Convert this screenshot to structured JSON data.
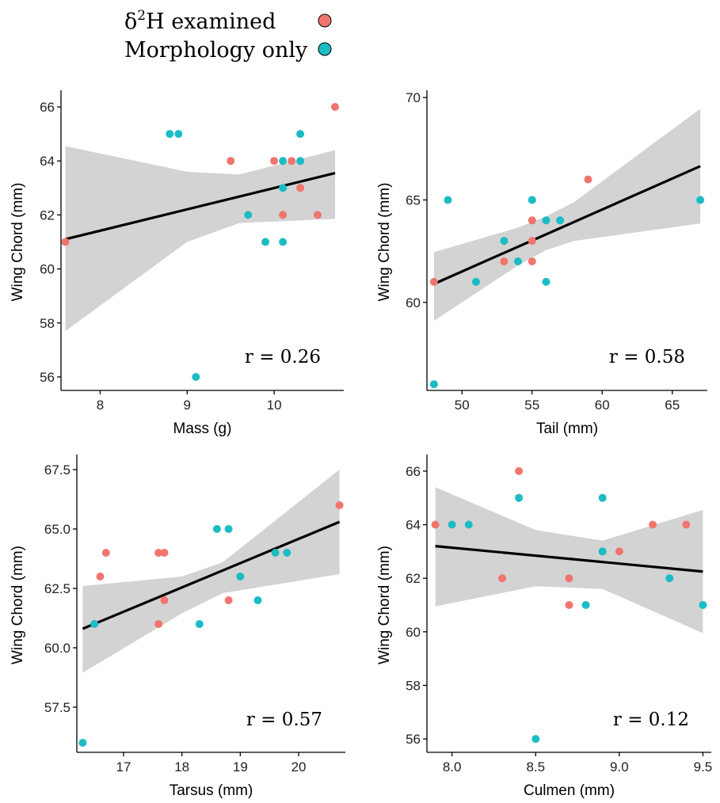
{
  "legend": {
    "items": [
      {
        "label_base": "δ",
        "label_sup": "2",
        "label_rest": "H examined",
        "color": "#F0756E"
      },
      {
        "label_base": "Morphology only",
        "label_sup": "",
        "label_rest": "",
        "color": "#1BBCC4"
      }
    ],
    "marker_stroke": "#000000"
  },
  "colors": {
    "delta2h": "#F0756E",
    "morphology": "#1BBCC4",
    "fit_line": "#000000",
    "ci_band": "#d3d3d3"
  },
  "chart_data": [
    {
      "type": "scatter",
      "xlabel": "Mass (g)",
      "ylabel": "Wing Chord (mm)",
      "r_label": "r = 0.26",
      "xlim": [
        7.55,
        10.8
      ],
      "ylim": [
        55.5,
        66.5
      ],
      "xticks": [
        8,
        9,
        10
      ],
      "xtick_labels": [
        "8",
        "9",
        "10"
      ],
      "yticks": [
        56,
        58,
        60,
        62,
        64,
        66
      ],
      "ytick_labels": [
        "56",
        "58",
        "60",
        "62",
        "64",
        "66"
      ],
      "fit": {
        "x": [
          7.6,
          10.7
        ],
        "y": [
          61.1,
          63.55
        ]
      },
      "ci_band": {
        "x": [
          7.6,
          9.0,
          9.6,
          10.7
        ],
        "upper": [
          64.55,
          63.6,
          63.5,
          64.4
        ],
        "lower": [
          57.7,
          61.0,
          61.7,
          61.85
        ]
      },
      "series": [
        {
          "name": "δ2H examined",
          "points": [
            [
              7.6,
              61
            ],
            [
              9.5,
              64
            ],
            [
              10.0,
              64
            ],
            [
              10.2,
              64
            ],
            [
              10.1,
              62
            ],
            [
              10.3,
              63
            ],
            [
              10.5,
              62
            ],
            [
              10.7,
              66
            ]
          ]
        },
        {
          "name": "Morphology only",
          "points": [
            [
              8.8,
              65
            ],
            [
              8.9,
              65
            ],
            [
              9.1,
              56
            ],
            [
              9.7,
              62
            ],
            [
              9.9,
              61
            ],
            [
              10.1,
              64
            ],
            [
              10.1,
              63
            ],
            [
              10.1,
              61
            ],
            [
              10.3,
              65
            ],
            [
              10.3,
              64
            ]
          ]
        }
      ]
    },
    {
      "type": "scatter",
      "xlabel": "Tail (mm)",
      "ylabel": "Wing Chord (mm)",
      "r_label": "r = 0.58",
      "xlim": [
        47.5,
        67.5
      ],
      "ylim": [
        55.7,
        70.2
      ],
      "xticks": [
        50,
        55,
        60,
        65
      ],
      "xtick_labels": [
        "50",
        "55",
        "60",
        "65"
      ],
      "yticks": [
        60,
        65,
        70
      ],
      "ytick_labels": [
        "60",
        "65",
        "70"
      ],
      "fit": {
        "x": [
          48,
          67
        ],
        "y": [
          60.9,
          66.65
        ]
      },
      "ci_band": {
        "x": [
          48,
          54,
          56,
          58,
          67
        ],
        "upper": [
          62.45,
          63.65,
          64.2,
          64.9,
          69.45
        ],
        "lower": [
          59.1,
          61.8,
          62.55,
          63.0,
          63.85
        ]
      },
      "series": [
        {
          "name": "δ2H examined",
          "points": [
            [
              48,
              61
            ],
            [
              53,
              62
            ],
            [
              55,
              64
            ],
            [
              55,
              63
            ],
            [
              55,
              62
            ],
            [
              59,
              66
            ]
          ]
        },
        {
          "name": "Morphology only",
          "points": [
            [
              48,
              56
            ],
            [
              49,
              65
            ],
            [
              51,
              61
            ],
            [
              53,
              63
            ],
            [
              54,
              62
            ],
            [
              55,
              65
            ],
            [
              56,
              64
            ],
            [
              56,
              61
            ],
            [
              57,
              64
            ],
            [
              67,
              65
            ]
          ]
        }
      ]
    },
    {
      "type": "scatter",
      "xlabel": "Tarsus (mm)",
      "ylabel": "Wing Chord (mm)",
      "r_label": "r = 0.57",
      "xlim": [
        16.2,
        20.8
      ],
      "ylim": [
        55.6,
        68.0
      ],
      "xticks": [
        17,
        18,
        19,
        20
      ],
      "xtick_labels": [
        "17",
        "18",
        "19",
        "20"
      ],
      "yticks": [
        57.5,
        60.0,
        62.5,
        65.0,
        67.5
      ],
      "ytick_labels": [
        "57.5",
        "60.0",
        "62.5",
        "65.0",
        "67.5"
      ],
      "fit": {
        "x": [
          16.3,
          20.7
        ],
        "y": [
          60.8,
          65.3
        ]
      },
      "ci_band": {
        "x": [
          16.3,
          18.0,
          18.7,
          20.7
        ],
        "upper": [
          62.6,
          63.0,
          63.6,
          67.5
        ],
        "lower": [
          58.95,
          61.45,
          62.3,
          63.1
        ]
      },
      "series": [
        {
          "name": "δ2H examined",
          "points": [
            [
              16.6,
              63
            ],
            [
              16.7,
              64
            ],
            [
              17.6,
              64
            ],
            [
              17.7,
              64
            ],
            [
              17.7,
              62
            ],
            [
              17.6,
              61
            ],
            [
              18.8,
              62
            ],
            [
              20.7,
              66
            ]
          ]
        },
        {
          "name": "Morphology only",
          "points": [
            [
              16.3,
              56
            ],
            [
              16.5,
              61
            ],
            [
              18.3,
              61
            ],
            [
              18.6,
              65
            ],
            [
              18.8,
              65
            ],
            [
              19.0,
              63
            ],
            [
              19.3,
              62
            ],
            [
              19.6,
              64
            ],
            [
              19.8,
              64
            ]
          ]
        }
      ]
    },
    {
      "type": "scatter",
      "xlabel": "Culmen (mm)",
      "ylabel": "Wing Chord (mm)",
      "r_label": "r = 0.12",
      "xlim": [
        7.85,
        9.55
      ],
      "ylim": [
        55.5,
        66.5
      ],
      "xticks": [
        8.0,
        8.5,
        9.0,
        9.5
      ],
      "xtick_labels": [
        "8.0",
        "8.5",
        "9.0",
        "9.5"
      ],
      "yticks": [
        56,
        58,
        60,
        62,
        64,
        66
      ],
      "ytick_labels": [
        "56",
        "58",
        "60",
        "62",
        "64",
        "66"
      ],
      "fit": {
        "x": [
          7.9,
          9.5
        ],
        "y": [
          63.2,
          62.25
        ]
      },
      "ci_band": {
        "x": [
          7.9,
          8.5,
          8.9,
          9.5
        ],
        "upper": [
          65.4,
          63.8,
          63.4,
          64.55
        ],
        "lower": [
          60.95,
          61.7,
          61.6,
          59.95
        ]
      },
      "series": [
        {
          "name": "δ2H examined",
          "points": [
            [
              7.9,
              64
            ],
            [
              8.3,
              62
            ],
            [
              8.4,
              66
            ],
            [
              8.7,
              62
            ],
            [
              8.7,
              61
            ],
            [
              9.0,
              63
            ],
            [
              9.2,
              64
            ],
            [
              9.4,
              64
            ]
          ]
        },
        {
          "name": "Morphology only",
          "points": [
            [
              8.0,
              64
            ],
            [
              8.1,
              64
            ],
            [
              8.4,
              65
            ],
            [
              8.5,
              56
            ],
            [
              8.8,
              61
            ],
            [
              8.9,
              65
            ],
            [
              8.9,
              63
            ],
            [
              9.3,
              62
            ],
            [
              9.5,
              61
            ]
          ]
        }
      ]
    }
  ]
}
